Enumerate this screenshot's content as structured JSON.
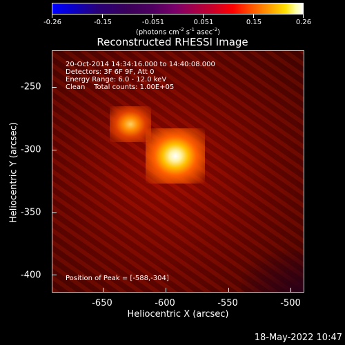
{
  "colorbar": {
    "ticks": [
      "-0.26",
      "-0.15",
      "-0.051",
      "0.051",
      "0.15",
      "0.26"
    ],
    "unit_prefix": "(photons cm",
    "unit_exp1": "-2",
    "unit_mid1": " s",
    "unit_exp2": "-1",
    "unit_mid2": " asec",
    "unit_exp3": "-2",
    "unit_suffix": ")"
  },
  "title": "Reconstructed RHESSI Image",
  "info": {
    "line1": "20-Oct-2014 14:34:16.000 to 14:40:08.000",
    "line2": "Detectors: 3F 6F 9F, Att 0",
    "line3": "Energy Range: 6.0 - 12.0 keV",
    "line4": "Clean    Total counts: 1.00E+05",
    "peak": "Position of Peak = [-588,-304]"
  },
  "axes": {
    "xlabel": "Heliocentric X (arcsec)",
    "ylabel": "Heliocentric Y (arcsec)",
    "xticks": [
      "-650",
      "-600",
      "-550",
      "-500"
    ],
    "yticks": [
      "-250",
      "-300",
      "-350",
      "-400"
    ]
  },
  "timestamp": "18-May-2022 10:47"
}
